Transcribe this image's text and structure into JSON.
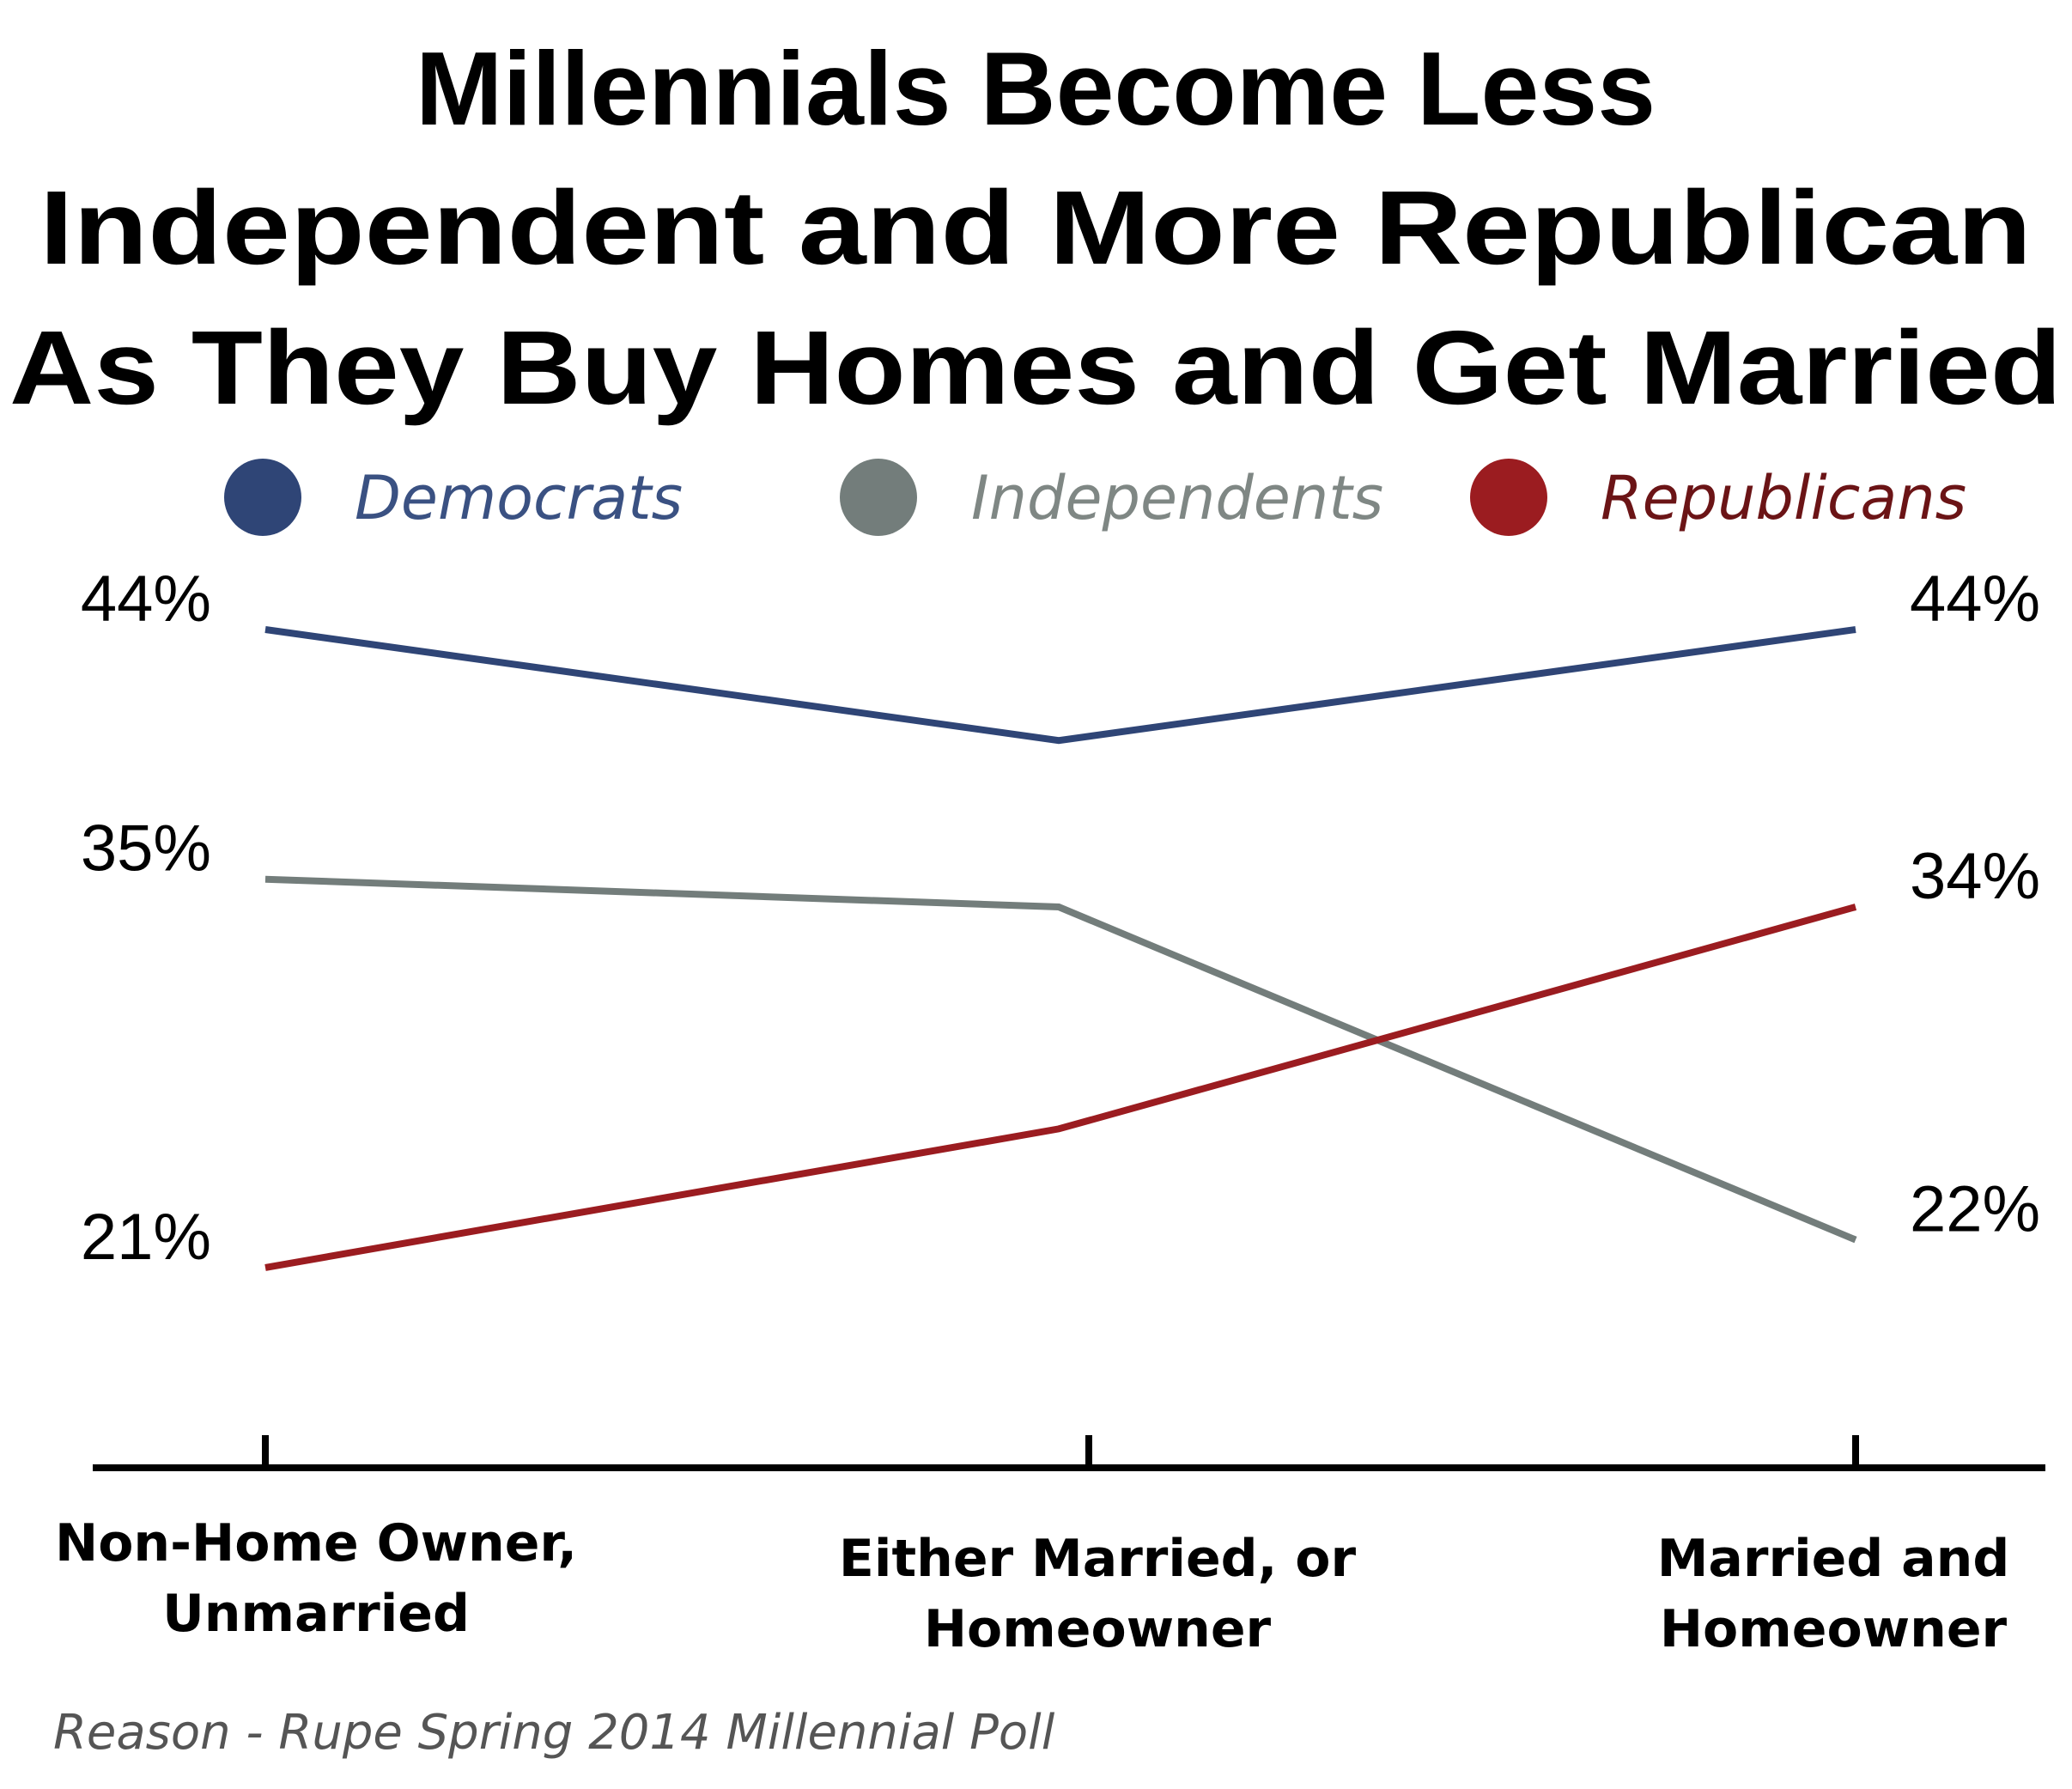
{
  "chart_data": {
    "type": "line",
    "title": [
      "Millennials Become Less",
      "Independent and More Republican",
      "As They Buy Homes and Get Married"
    ],
    "categories": [
      [
        "Non-Home Owner,",
        "Unmarried"
      ],
      [
        "Either Married, or",
        "Homeowner"
      ],
      [
        "Married and",
        "Homeowner"
      ]
    ],
    "series": [
      {
        "name": "Democrats",
        "color": "#2f4576",
        "legend_text_color": "#3a5182",
        "values": [
          44,
          40,
          44
        ],
        "labels": [
          "44%",
          null,
          "44%"
        ]
      },
      {
        "name": "Independents",
        "color": "#737d7b",
        "legend_text_color": "#7f8784",
        "values": [
          35,
          34,
          22
        ],
        "labels": [
          "35%",
          null,
          "22%"
        ]
      },
      {
        "name": "Republicans",
        "color": "#9b1c20",
        "legend_text_color": "#6b1416",
        "values": [
          21,
          26,
          34
        ],
        "labels": [
          "21%",
          null,
          "34%"
        ]
      }
    ],
    "legend_placement": "top",
    "grid": false,
    "unit": "%",
    "source": "Reason - Rupe Spring 2014 Millennial Poll"
  }
}
